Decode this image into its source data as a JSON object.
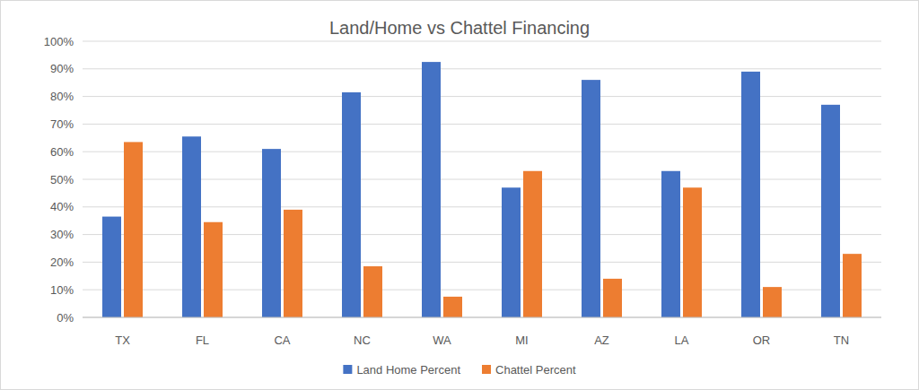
{
  "chart_data": {
    "type": "bar",
    "title": "Land/Home vs Chattel Financing",
    "categories": [
      "TX",
      "FL",
      "CA",
      "NC",
      "WA",
      "MI",
      "AZ",
      "LA",
      "OR",
      "TN"
    ],
    "series": [
      {
        "name": "Land Home Percent",
        "color": "#4472c4",
        "values": [
          36.5,
          65.5,
          61,
          81.5,
          92.5,
          47,
          86,
          53,
          89,
          77
        ]
      },
      {
        "name": "Chattel Percent",
        "color": "#ed7d31",
        "values": [
          63.5,
          34.5,
          39,
          18.5,
          7.5,
          53,
          14,
          47,
          11,
          23
        ]
      }
    ],
    "ylim": [
      0,
      100
    ],
    "yticks": [
      {
        "value": 0,
        "label": "0%"
      },
      {
        "value": 10,
        "label": "10%"
      },
      {
        "value": 20,
        "label": "20%"
      },
      {
        "value": 30,
        "label": "30%"
      },
      {
        "value": 40,
        "label": "40%"
      },
      {
        "value": 50,
        "label": "50%"
      },
      {
        "value": 60,
        "label": "60%"
      },
      {
        "value": 70,
        "label": "70%"
      },
      {
        "value": 80,
        "label": "80%"
      },
      {
        "value": 90,
        "label": "90%"
      },
      {
        "value": 100,
        "label": "100%"
      }
    ],
    "grid": true,
    "legend": "bottom"
  }
}
